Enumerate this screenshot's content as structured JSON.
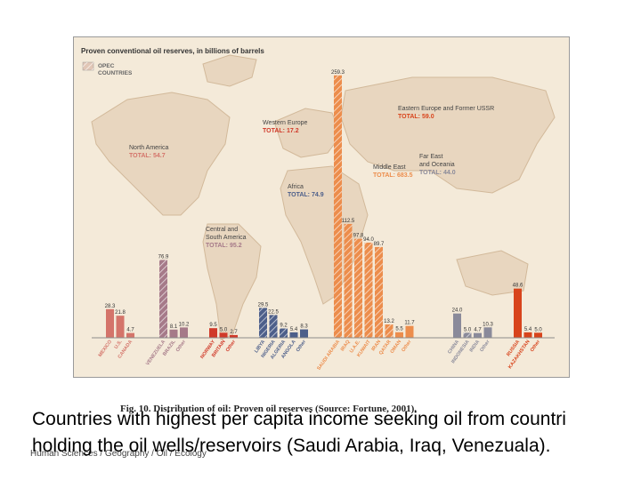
{
  "chart_data": {
    "type": "bar",
    "title": "Proven conventional oil reserves, in billions of barrels",
    "legend": {
      "label_line1": "OPEC",
      "label_line2": "COUNTRIES",
      "opec_color": "#e1c6b6"
    },
    "colors": {
      "north_america": "#d4746a",
      "latin_america": "#a67a89",
      "western_europe": "#d03a2a",
      "africa": "#4d5f8a",
      "middle_east": "#ec8d4c",
      "eastern_europe": "#d8441c",
      "far_east": "#8a8a9a",
      "axis": "#8c8c8c"
    },
    "regions": [
      {
        "name_line1": "North America",
        "total_label": "TOTAL: 54.7",
        "color_key": "north_america",
        "bars": [
          {
            "country": "MEXICO",
            "value": 28.3,
            "opec": false
          },
          {
            "country": "U.S.",
            "value": 21.8,
            "opec": false
          },
          {
            "country": "CANADA",
            "value": 4.7,
            "opec": false
          }
        ]
      },
      {
        "name_line1": "Central and",
        "name_line2": "South America",
        "total_label": "TOTAL: 95.2",
        "color_key": "latin_america",
        "bars": [
          {
            "country": "VENEZUELA",
            "value": 76.9,
            "opec": true
          },
          {
            "country": "BRAZIL",
            "value": 8.1,
            "opec": false
          },
          {
            "country": "Other",
            "value": 10.2,
            "opec": false
          }
        ]
      },
      {
        "name_line1": "Western Europe",
        "total_label": "TOTAL: 17.2",
        "color_key": "western_europe",
        "bars": [
          {
            "country": "NORWAY",
            "value": 9.5,
            "opec": false
          },
          {
            "country": "BRITAIN",
            "value": 5.0,
            "opec": false
          },
          {
            "country": "Other",
            "value": 2.7,
            "opec": false
          }
        ]
      },
      {
        "name_line1": "Africa",
        "total_label": "TOTAL: 74.9",
        "color_key": "africa",
        "bars": [
          {
            "country": "LIBYA",
            "value": 29.5,
            "opec": true
          },
          {
            "country": "NIGERIA",
            "value": 22.5,
            "opec": true
          },
          {
            "country": "ALGERIA",
            "value": 9.2,
            "opec": true
          },
          {
            "country": "ANGOLA",
            "value": 5.4,
            "opec": false
          },
          {
            "country": "Other",
            "value": 8.3,
            "opec": false
          }
        ]
      },
      {
        "name_line1": "Middle East",
        "total_label": "TOTAL: 683.5",
        "color_key": "middle_east",
        "bars": [
          {
            "country": "SAUDI ARABIA",
            "value": 259.3,
            "opec": true
          },
          {
            "country": "IRAQ",
            "value": 112.5,
            "opec": true
          },
          {
            "country": "U.A.E.",
            "value": 97.8,
            "opec": true
          },
          {
            "country": "KUWAIT",
            "value": 94.0,
            "opec": true
          },
          {
            "country": "IRAN",
            "value": 89.7,
            "opec": true
          },
          {
            "country": "QATAR",
            "value": 13.2,
            "opec": true
          },
          {
            "country": "OMAN",
            "value": 5.5,
            "opec": false
          },
          {
            "country": "Other",
            "value": 11.7,
            "opec": false
          }
        ]
      },
      {
        "name_line1": "Far East",
        "name_line2": "and Oceania",
        "total_label": "TOTAL: 44.0",
        "color_key": "far_east",
        "bars": [
          {
            "country": "CHINA",
            "value": 24.0,
            "opec": false
          },
          {
            "country": "INDONESIA",
            "value": 5.0,
            "opec": true
          },
          {
            "country": "INDIA",
            "value": 4.7,
            "opec": false
          },
          {
            "country": "Other",
            "value": 10.3,
            "opec": false
          }
        ]
      },
      {
        "name_line1": "Eastern Europe and Former USSR",
        "total_label": "TOTAL: 59.0",
        "color_key": "eastern_europe",
        "bars": [
          {
            "country": "RUSSIA",
            "value": 48.6,
            "opec": false
          },
          {
            "country": "KAZAKHSTAN",
            "value": 5.4,
            "opec": false
          },
          {
            "country": "Other",
            "value": 5.0,
            "opec": false
          }
        ]
      }
    ],
    "ylim": [
      0,
      260
    ]
  },
  "figure_caption": "Fig. 10. Distribution of oil: Proven oil reserves (Source: Fortune, 2001).",
  "slide_text": {
    "line1": "Countries with highest per capita income seeking oil from countri",
    "line2": "holding the oil wells/reservoirs (Saudi Arabia, Iraq, Venezuala).",
    "credit": "Human Sciences / Geography / Oil / Ecology"
  }
}
